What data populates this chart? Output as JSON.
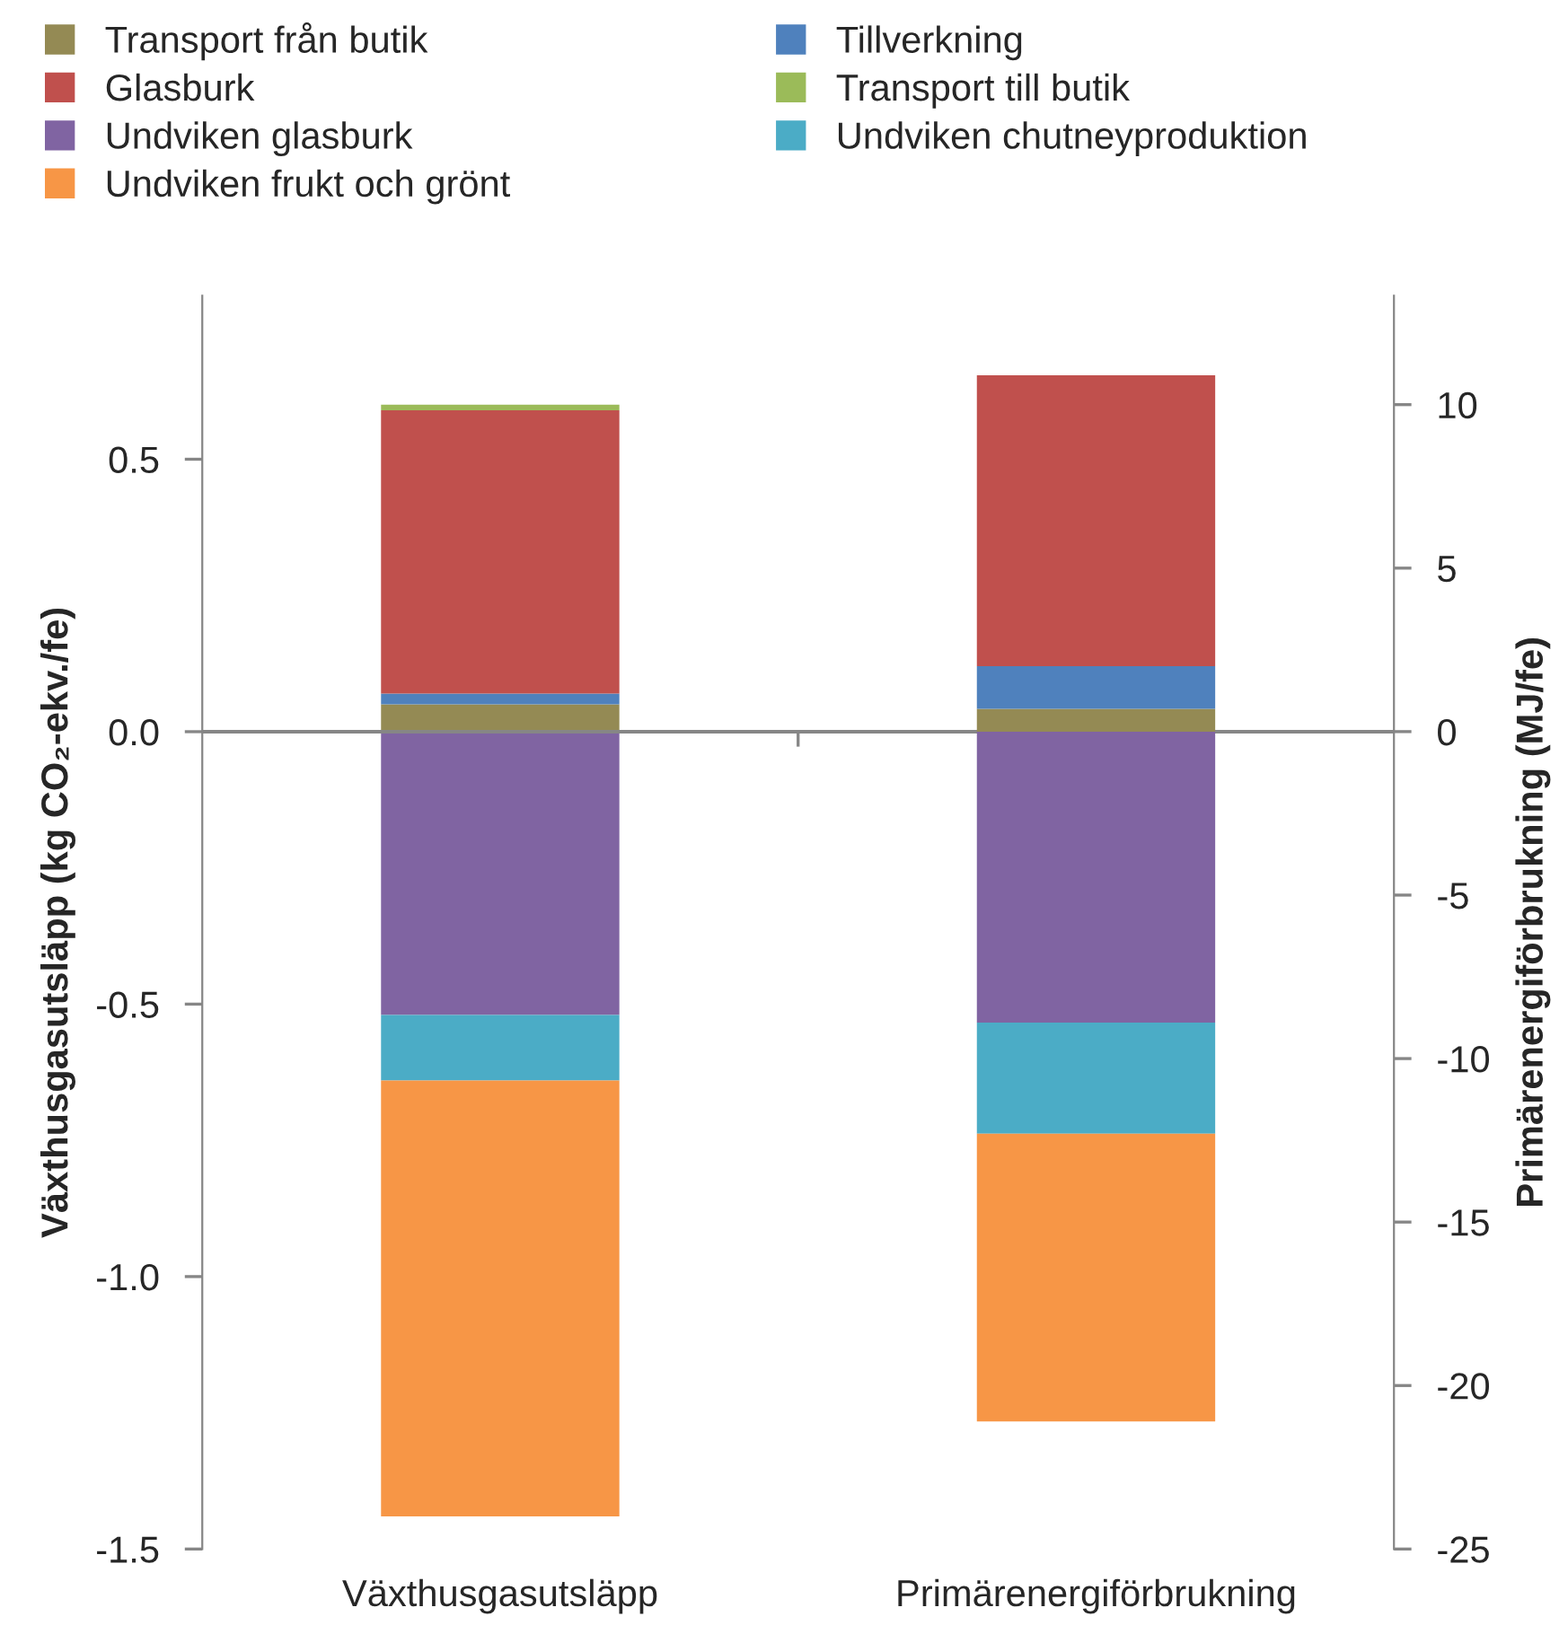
{
  "chart_data": {
    "type": "bar",
    "stacked": true,
    "categories": [
      "Växthusgasutsläpp",
      "Primärenergiförbrukning"
    ],
    "ylabel": "Växthusgasutsläpp (kg CO₂-ekv./fe)",
    "y2label": "Primärenergiförbrukning (MJ/fe)",
    "ylim": [
      -1.5,
      0.8
    ],
    "yticks": [
      {
        "value": -1.5,
        "label": "-1.5"
      },
      {
        "value": -1.0,
        "label": "-1.0"
      },
      {
        "value": -0.5,
        "label": "-0.5"
      },
      {
        "value": 0,
        "label": "0.0"
      },
      {
        "value": 0.5,
        "label": "0.5"
      }
    ],
    "y2lim": [
      -25,
      13.33
    ],
    "y2ticks": [
      -25,
      -20,
      -15,
      -10,
      -5,
      0,
      5,
      10
    ],
    "legend": "top",
    "grid": false,
    "ref_lines": [
      {
        "axis": "y",
        "value": 0,
        "color": "#868686"
      }
    ],
    "series": [
      {
        "name": "Transport från butik",
        "color": "#948a54",
        "values": [
          0.05,
          null
        ]
      },
      {
        "name": "Tillverkning",
        "color": "#4f81bd",
        "values": [
          0.02,
          null
        ]
      },
      {
        "name": "Glasburk",
        "color": "#c0504d",
        "values": [
          0.52,
          null
        ]
      },
      {
        "name": "Transport till butik",
        "color": "#9bbb59",
        "values": [
          0.01,
          null
        ]
      },
      {
        "name": "Undviken glasburk",
        "color": "#8064a2",
        "values": [
          -0.52,
          null
        ]
      },
      {
        "name": "Undviken chutneyproduktion",
        "color": "#4bacc6",
        "values": [
          -0.12,
          null
        ]
      },
      {
        "name": "Undviken frukt och grönt",
        "color": "#f79646",
        "values": [
          -0.8,
          null
        ]
      },
      {
        "axis": "y2",
        "color": "#948a54",
        "values": [
          null,
          0.7
        ]
      },
      {
        "axis": "y2",
        "color": "#4f81bd",
        "values": [
          null,
          1.3
        ]
      },
      {
        "axis": "y2",
        "color": "#c0504d",
        "values": [
          null,
          8.9
        ]
      },
      {
        "axis": "y2",
        "color": "#8064a2",
        "values": [
          null,
          -8.9
        ]
      },
      {
        "axis": "y2",
        "color": "#4bacc6",
        "values": [
          null,
          -3.4
        ]
      },
      {
        "axis": "y2",
        "color": "#f79646",
        "values": [
          null,
          -8.8
        ]
      }
    ]
  }
}
